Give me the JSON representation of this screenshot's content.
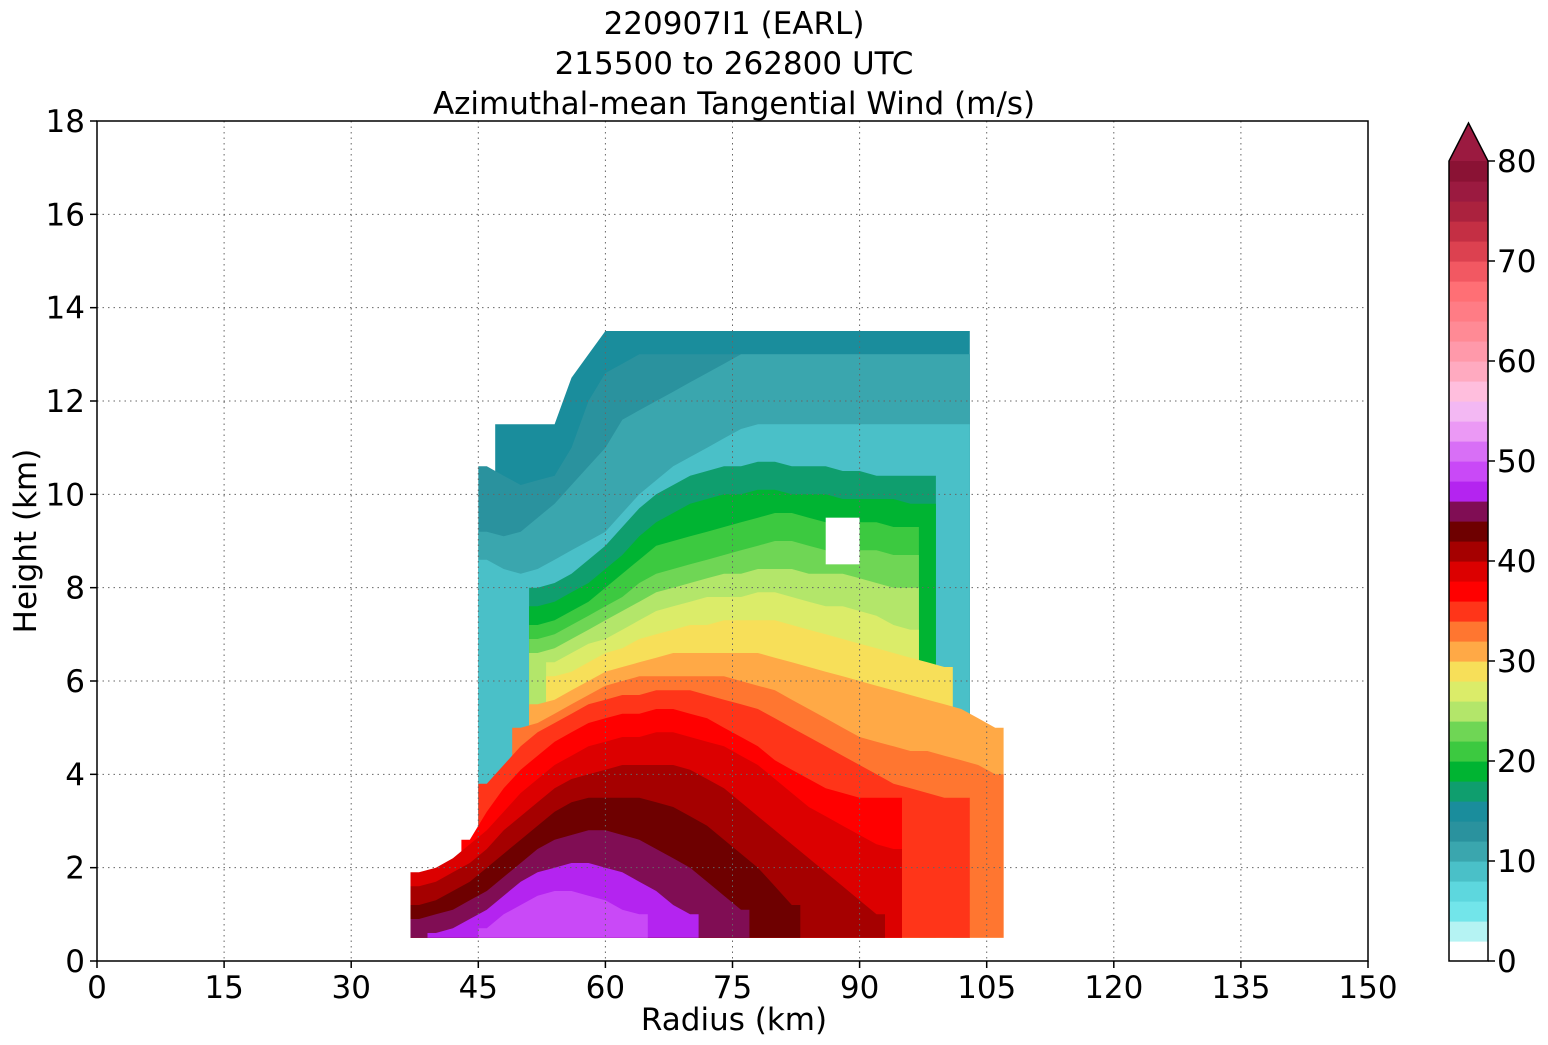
{
  "chart_data": {
    "type": "filled-contour",
    "title_lines": [
      "220907I1 (EARL)",
      "215500 to 262800 UTC",
      "Azimuthal-mean Tangential Wind (m/s)"
    ],
    "xlabel": "Radius (km)",
    "ylabel": "Height (km)",
    "xlim": [
      0,
      150
    ],
    "ylim": [
      0,
      18
    ],
    "xticks": [
      "0",
      "15",
      "30",
      "45",
      "60",
      "75",
      "90",
      "105",
      "120",
      "135",
      "150"
    ],
    "yticks": [
      "0",
      "2",
      "4",
      "6",
      "8",
      "10",
      "12",
      "14",
      "16",
      "18"
    ],
    "grid": true,
    "colorbar": {
      "range": [
        0,
        80
      ],
      "step": 2,
      "extend": "max",
      "tick_labels": [
        "0",
        "10",
        "20",
        "30",
        "40",
        "50",
        "60",
        "70",
        "80"
      ],
      "colors": [
        "#ffffff",
        "#b5f3f3",
        "#72e5ea",
        "#5dd7de",
        "#4ac0c8",
        "#3aa6ae",
        "#2a929e",
        "#1a8d9c",
        "#0f9e6e",
        "#00b432",
        "#3cc940",
        "#6fd655",
        "#b3e66a",
        "#dbec69",
        "#f7df59",
        "#ffa946",
        "#ff7630",
        "#ff3519",
        "#ff0000",
        "#dc0000",
        "#a50000",
        "#6e0000",
        "#800d54",
        "#b424f0",
        "#c949f7",
        "#d86ff6",
        "#eb99f5",
        "#f3b8f3",
        "#ffbedd",
        "#ffaac0",
        "#ff99aa",
        "#ff8a95",
        "#ff7c85",
        "#ff6f75",
        "#f25862",
        "#dc4150",
        "#c42f44",
        "#ab223e",
        "#9b1a40",
        "#8a1234"
      ],
      "extend_color": "#9b1a40"
    },
    "radius_km": [
      38,
      40,
      42,
      44,
      46,
      48,
      50,
      52,
      54,
      56,
      58,
      60,
      62,
      64,
      66,
      68,
      70,
      72,
      74,
      76,
      78,
      80,
      82,
      84,
      86,
      88,
      90,
      92,
      94,
      96,
      98,
      100,
      102,
      104,
      106
    ],
    "band_boundaries": [
      {
        "level": 14,
        "heights_km": [
          null,
          null,
          null,
          null,
          null,
          11.5,
          11.5,
          11.5,
          11.5,
          12.5,
          13.0,
          13.5,
          13.5,
          13.5,
          13.5,
          13.5,
          13.5,
          13.5,
          13.5,
          13.5,
          13.5,
          13.5,
          13.5,
          13.5,
          13.5,
          13.5,
          13.5,
          13.5,
          13.5,
          13.5,
          13.5,
          13.5,
          13.5,
          null,
          null
        ]
      },
      {
        "level": 12,
        "heights_km": [
          null,
          null,
          null,
          null,
          10.6,
          10.4,
          10.2,
          10.3,
          10.4,
          11.0,
          12.0,
          12.6,
          12.8,
          13.0,
          13.0,
          13.0,
          13.0,
          13.0,
          13.0,
          13.0,
          13.0,
          13.0,
          13.0,
          13.0,
          13.0,
          13.0,
          13.0,
          13.0,
          13.0,
          13.0,
          13.0,
          13.0,
          13.0,
          null,
          null
        ]
      },
      {
        "level": 10,
        "heights_km": [
          null,
          null,
          null,
          null,
          9.2,
          9.1,
          9.2,
          9.5,
          9.8,
          10.2,
          10.6,
          11.0,
          11.6,
          11.8,
          12.0,
          12.2,
          12.4,
          12.6,
          12.8,
          13.0,
          13.0,
          13.0,
          13.0,
          13.0,
          13.0,
          13.0,
          13.0,
          13.0,
          13.0,
          13.0,
          13.0,
          13.0,
          13.0,
          null,
          null
        ]
      },
      {
        "level": 8,
        "heights_km": [
          null,
          null,
          null,
          null,
          8.6,
          8.4,
          8.3,
          8.4,
          8.6,
          8.8,
          9.0,
          9.2,
          9.6,
          10.0,
          10.3,
          10.6,
          10.8,
          11.0,
          11.2,
          11.4,
          11.5,
          11.5,
          11.5,
          11.5,
          11.5,
          11.5,
          11.5,
          11.5,
          11.5,
          11.5,
          11.5,
          11.5,
          11.5,
          null,
          null
        ]
      },
      {
        "level": 16,
        "heights_km": [
          null,
          null,
          null,
          null,
          null,
          null,
          null,
          8.0,
          8.1,
          8.3,
          8.6,
          8.9,
          9.3,
          9.7,
          10.0,
          10.2,
          10.4,
          10.5,
          10.6,
          10.6,
          10.7,
          10.7,
          10.6,
          10.6,
          10.6,
          10.5,
          10.5,
          10.4,
          10.4,
          10.4,
          10.4,
          null,
          null,
          null,
          null
        ]
      },
      {
        "level": 18,
        "heights_km": [
          null,
          null,
          null,
          null,
          null,
          null,
          null,
          7.6,
          7.7,
          7.9,
          8.1,
          8.4,
          8.7,
          9.1,
          9.4,
          9.6,
          9.8,
          9.9,
          10.0,
          10.0,
          10.1,
          10.1,
          10.0,
          10.0,
          10.0,
          9.9,
          9.9,
          9.9,
          9.9,
          9.8,
          9.8,
          null,
          null,
          null,
          null
        ]
      },
      {
        "level": 20,
        "heights_km": [
          null,
          null,
          null,
          null,
          null,
          null,
          null,
          7.2,
          7.3,
          7.5,
          7.7,
          8.0,
          8.3,
          8.6,
          8.9,
          9.0,
          9.1,
          9.2,
          9.3,
          9.4,
          9.5,
          9.6,
          9.6,
          9.5,
          9.4,
          9.4,
          9.4,
          9.4,
          9.3,
          9.3,
          null,
          null,
          null,
          null,
          null
        ]
      },
      {
        "level": 22,
        "heights_km": [
          null,
          null,
          null,
          null,
          null,
          null,
          null,
          6.9,
          7.0,
          7.2,
          7.4,
          7.6,
          7.8,
          8.1,
          8.3,
          8.4,
          8.5,
          8.6,
          8.7,
          8.8,
          8.9,
          9.0,
          9.0,
          8.9,
          8.8,
          8.8,
          8.8,
          8.8,
          8.7,
          8.7,
          null,
          null,
          null,
          null,
          null
        ]
      },
      {
        "level": 24,
        "heights_km": [
          null,
          null,
          null,
          null,
          null,
          null,
          null,
          6.6,
          6.7,
          6.9,
          7.1,
          7.3,
          7.5,
          7.7,
          7.9,
          8.0,
          8.1,
          8.2,
          8.3,
          8.3,
          8.4,
          8.4,
          8.4,
          8.3,
          8.3,
          8.3,
          8.2,
          8.1,
          8.0,
          8.0,
          null,
          null,
          null,
          null,
          null
        ]
      },
      {
        "level": 26,
        "heights_km": [
          null,
          null,
          null,
          null,
          null,
          null,
          null,
          null,
          6.4,
          6.6,
          6.8,
          6.9,
          7.1,
          7.3,
          7.5,
          7.6,
          7.7,
          7.8,
          7.8,
          7.8,
          7.9,
          7.9,
          7.8,
          7.7,
          7.6,
          7.6,
          7.5,
          7.4,
          7.2,
          7.1,
          null,
          null,
          null,
          null,
          null
        ]
      },
      {
        "level": 28,
        "heights_km": [
          null,
          null,
          null,
          null,
          null,
          null,
          null,
          null,
          6.1,
          6.2,
          6.4,
          6.6,
          6.7,
          6.9,
          7.0,
          7.1,
          7.2,
          7.2,
          7.3,
          7.3,
          7.3,
          7.3,
          7.2,
          7.1,
          7.0,
          6.9,
          6.8,
          6.7,
          6.6,
          6.5,
          6.4,
          6.3,
          null,
          null,
          null
        ]
      },
      {
        "level": 30,
        "heights_km": [
          null,
          null,
          null,
          null,
          null,
          null,
          null,
          5.5,
          5.6,
          5.8,
          6.0,
          6.2,
          6.3,
          6.4,
          6.5,
          6.6,
          6.6,
          6.6,
          6.6,
          6.6,
          6.6,
          6.5,
          6.4,
          6.3,
          6.2,
          6.1,
          6.0,
          5.9,
          5.8,
          5.7,
          5.6,
          5.5,
          5.4,
          5.2,
          5.0
        ]
      },
      {
        "level": 32,
        "heights_km": [
          null,
          null,
          null,
          null,
          null,
          null,
          5.0,
          5.1,
          5.3,
          5.5,
          5.7,
          5.9,
          6.0,
          6.1,
          6.1,
          6.1,
          6.1,
          6.1,
          6.1,
          6.0,
          5.9,
          5.8,
          5.6,
          5.4,
          5.2,
          5.0,
          4.8,
          4.7,
          4.6,
          4.5,
          4.5,
          4.4,
          4.3,
          4.2,
          4.0
        ]
      },
      {
        "level": 34,
        "heights_km": [
          null,
          null,
          null,
          null,
          3.8,
          4.2,
          4.6,
          4.9,
          5.1,
          5.3,
          5.5,
          5.6,
          5.7,
          5.7,
          5.8,
          5.8,
          5.8,
          5.7,
          5.6,
          5.5,
          5.4,
          5.2,
          5.0,
          4.8,
          4.6,
          4.4,
          4.2,
          4.0,
          3.8,
          3.7,
          3.6,
          3.5,
          3.5,
          null,
          null
        ]
      },
      {
        "level": 36,
        "heights_km": [
          null,
          null,
          null,
          2.6,
          3.2,
          3.7,
          4.1,
          4.4,
          4.7,
          4.9,
          5.1,
          5.2,
          5.3,
          5.3,
          5.4,
          5.4,
          5.3,
          5.2,
          5.0,
          4.8,
          4.6,
          4.3,
          4.1,
          3.9,
          3.7,
          3.6,
          3.5,
          3.5,
          3.5,
          null,
          null,
          null,
          null,
          null,
          null
        ]
      },
      {
        "level": 38,
        "heights_km": [
          1.9,
          2.0,
          2.2,
          2.5,
          2.8,
          3.2,
          3.6,
          3.9,
          4.2,
          4.4,
          4.6,
          4.7,
          4.8,
          4.8,
          4.9,
          4.9,
          4.8,
          4.7,
          4.6,
          4.4,
          4.2,
          3.9,
          3.6,
          3.3,
          3.1,
          2.9,
          2.7,
          2.5,
          2.4,
          null,
          null,
          null,
          null,
          null,
          null
        ]
      },
      {
        "level": 40,
        "heights_km": [
          1.6,
          1.7,
          1.9,
          2.1,
          2.4,
          2.8,
          3.1,
          3.4,
          3.7,
          3.9,
          4.0,
          4.1,
          4.2,
          4.2,
          4.2,
          4.2,
          4.1,
          3.9,
          3.7,
          3.4,
          3.1,
          2.8,
          2.5,
          2.2,
          1.9,
          1.6,
          1.3,
          1.0,
          null,
          null,
          null,
          null,
          null,
          null,
          null
        ]
      },
      {
        "level": 42,
        "heights_km": [
          1.2,
          1.3,
          1.5,
          1.7,
          2.0,
          2.3,
          2.6,
          2.9,
          3.2,
          3.4,
          3.5,
          3.5,
          3.5,
          3.5,
          3.4,
          3.3,
          3.1,
          2.9,
          2.6,
          2.3,
          2.0,
          1.6,
          1.2,
          null,
          null,
          null,
          null,
          null,
          null,
          null,
          null,
          null,
          null,
          null,
          null
        ]
      },
      {
        "level": 44,
        "heights_km": [
          0.9,
          1.0,
          1.1,
          1.3,
          1.5,
          1.8,
          2.1,
          2.4,
          2.6,
          2.7,
          2.8,
          2.8,
          2.7,
          2.6,
          2.4,
          2.2,
          2.0,
          1.7,
          1.4,
          1.1,
          null,
          null,
          null,
          null,
          null,
          null,
          null,
          null,
          null,
          null,
          null,
          null,
          null,
          null,
          null
        ]
      },
      {
        "level": 46,
        "heights_km": [
          null,
          0.6,
          0.7,
          0.9,
          1.1,
          1.4,
          1.7,
          1.9,
          2.0,
          2.1,
          2.1,
          2.0,
          1.9,
          1.7,
          1.5,
          1.2,
          1.0,
          null,
          null,
          null,
          null,
          null,
          null,
          null,
          null,
          null,
          null,
          null,
          null,
          null,
          null,
          null,
          null,
          null,
          null
        ]
      },
      {
        "level": 48,
        "heights_km": [
          null,
          null,
          null,
          null,
          0.7,
          1.0,
          1.2,
          1.4,
          1.5,
          1.5,
          1.4,
          1.3,
          1.1,
          1.0,
          null,
          null,
          null,
          null,
          null,
          null,
          null,
          null,
          null,
          null,
          null,
          null,
          null,
          null,
          null,
          null,
          null,
          null,
          null,
          null,
          null
        ]
      }
    ],
    "missing_data_block": {
      "radius_km": [
        86,
        90
      ],
      "height_km": [
        8.5,
        9.5
      ]
    }
  }
}
